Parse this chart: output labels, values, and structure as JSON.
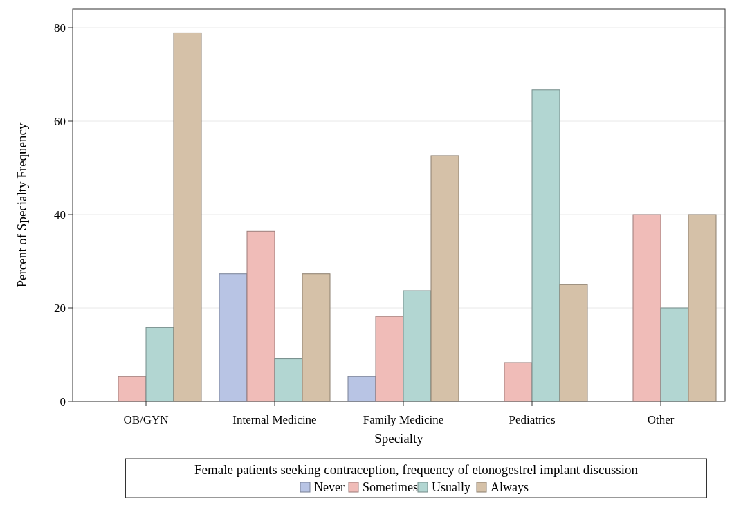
{
  "chart_data": {
    "type": "bar",
    "xlabel": "Specialty",
    "ylabel": "Percent of Specialty Frequency",
    "legend_title": "Female patients seeking contraception, frequency of etonogestrel implant discussion",
    "categories": [
      "OB/GYN",
      "Internal Medicine",
      "Family Medicine",
      "Pediatrics",
      "Other"
    ],
    "series": [
      {
        "name": "Never",
        "color": "#b8c4e4",
        "values": [
          0,
          27.3,
          5.3,
          0,
          0
        ]
      },
      {
        "name": "Sometimes",
        "color": "#f0bcb8",
        "values": [
          5.3,
          36.4,
          18.2,
          8.3,
          40
        ]
      },
      {
        "name": "Usually",
        "color": "#b2d6d2",
        "values": [
          15.8,
          9.1,
          23.7,
          66.7,
          20
        ]
      },
      {
        "name": "Always",
        "color": "#d5c1a8",
        "values": [
          78.9,
          27.3,
          52.6,
          25,
          40
        ]
      }
    ],
    "ylim": [
      0,
      84
    ],
    "yticks": [
      0,
      20,
      40,
      60,
      80
    ],
    "grid": "y",
    "legend": "bottom"
  }
}
